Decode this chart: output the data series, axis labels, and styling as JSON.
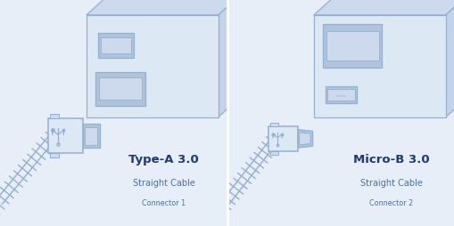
{
  "bg_color": "#e8eef8",
  "outline_color": "#94afd0",
  "dark_blue": "#1a3a7a",
  "medium_blue": "#4a6fa5",
  "light_blue": "#b8cce4",
  "face_color": "#dce8f4",
  "face_color2": "#cddaed",
  "face_color3": "#c4d4e8",
  "port_color": "#aec4dc",
  "left_title": "Type-A 3.0",
  "left_subtitle": "Straight Cable",
  "left_connector": "Connector 1",
  "right_title": "Micro-B 3.0",
  "right_subtitle": "Straight Cable",
  "right_connector": "Connector 2",
  "watermark": "coolgear"
}
